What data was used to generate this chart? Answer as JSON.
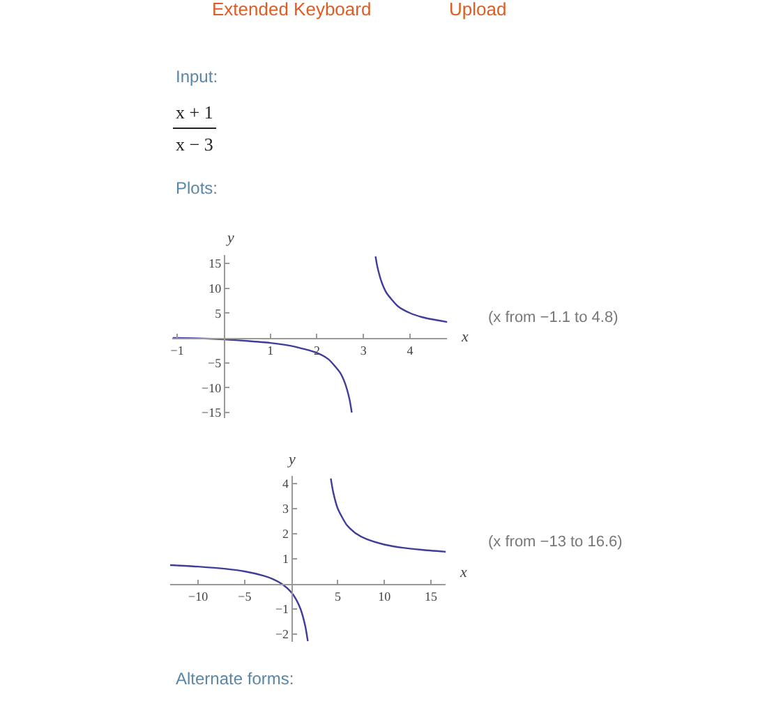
{
  "chart_data": [
    {
      "type": "line",
      "xlabel": "x",
      "ylabel": "y",
      "xlim": [
        -1.1,
        4.8
      ],
      "ylim": [
        -16.1,
        16.7
      ],
      "xticks": [
        -1,
        1,
        2,
        3,
        4
      ],
      "yticks": [
        -15,
        -10,
        -5,
        5,
        10,
        15
      ],
      "legend": false,
      "marker": "none",
      "line_style": "solid",
      "annotations": [
        "Extended Keyboard",
        "Upload",
        "Input:",
        "x + 1",
        "x − 3",
        "Plots:",
        "(x from −1.1 to 4.8)"
      ],
      "series": [
        {
          "color": "#3f3d99",
          "x": [
            -1.1,
            -0.5,
            0,
            0.5,
            1,
            1.5,
            2,
            2.25,
            2.5,
            2.6,
            2.7,
            2.75
          ],
          "values": [
            0.0,
            -0.1,
            -0.3,
            -0.6,
            -1,
            -1.7,
            -3,
            -4.3,
            -7,
            -9,
            -12.3,
            -15
          ]
        },
        {
          "color": "#3f3d99",
          "x": [
            3.26,
            3.3,
            3.4,
            3.5,
            3.75,
            4,
            4.25,
            4.5,
            4.8
          ],
          "values": [
            16.4,
            14.3,
            11,
            9,
            6.3,
            5,
            4.2,
            3.7,
            3.2
          ]
        }
      ]
    },
    {
      "type": "line",
      "xlabel": "x",
      "ylabel": "y",
      "xlim": [
        -13,
        16.6
      ],
      "ylim": [
        -2.3,
        4.3
      ],
      "xticks": [
        -10,
        -5,
        5,
        10,
        15
      ],
      "yticks": [
        -2,
        -1,
        1,
        2,
        3,
        4
      ],
      "legend": false,
      "marker": "none",
      "line_style": "solid",
      "annotations": [
        "(x from −13 to 16.6)",
        "Alternate forms:"
      ],
      "series": [
        {
          "color": "#3f3d99",
          "x": [
            -13,
            -10,
            -7,
            -5,
            -3,
            -2,
            -1,
            0,
            0.5,
            1,
            1.5,
            1.78
          ],
          "values": [
            0.75,
            0.69,
            0.6,
            0.5,
            0.33,
            0.2,
            0,
            -0.33,
            -0.6,
            -1,
            -1.67,
            -2.28
          ]
        },
        {
          "color": "#3f3d99",
          "x": [
            4.25,
            4.5,
            5,
            6,
            7,
            8,
            10,
            12,
            14,
            16.6
          ],
          "values": [
            4.2,
            3.67,
            3,
            2.33,
            2,
            1.8,
            1.57,
            1.44,
            1.36,
            1.28
          ]
        }
      ]
    }
  ]
}
